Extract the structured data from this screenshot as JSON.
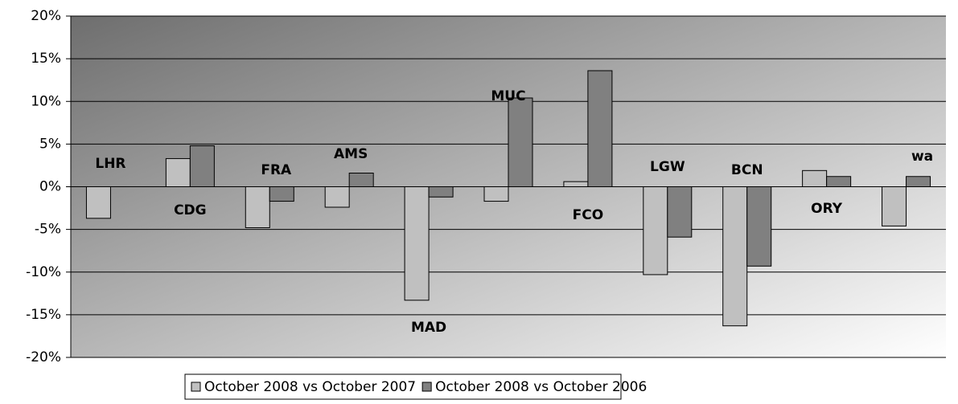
{
  "chart_data": {
    "type": "bar",
    "categories": [
      "LHR",
      "CDG",
      "FRA",
      "AMS",
      "MAD",
      "MUC",
      "FCO",
      "LGW",
      "BCN",
      "ORY",
      "wa"
    ],
    "series": [
      {
        "name": "October 2008 vs October 2007",
        "color": "#c0c0c0",
        "values": [
          -3.7,
          3.3,
          -4.8,
          -2.4,
          -13.3,
          -1.7,
          0.6,
          -10.3,
          -16.3,
          1.9,
          -4.6
        ]
      },
      {
        "name": "October 2008 vs October 2006",
        "color": "#808080",
        "values": [
          null,
          4.8,
          -1.7,
          1.6,
          -1.2,
          10.4,
          13.6,
          -5.9,
          -9.3,
          1.2,
          1.2
        ]
      }
    ],
    "ylim": [
      -20,
      20
    ],
    "yticks": [
      {
        "value": -20,
        "label": "-20%"
      },
      {
        "value": -15,
        "label": "-15%"
      },
      {
        "value": -10,
        "label": "-10%"
      },
      {
        "value": -5,
        "label": "-5%"
      },
      {
        "value": 0,
        "label": "0%"
      },
      {
        "value": 5,
        "label": "5%"
      },
      {
        "value": 10,
        "label": "10%"
      },
      {
        "value": 15,
        "label": "15%"
      },
      {
        "value": 20,
        "label": "20%"
      }
    ],
    "grid": true,
    "legend": "bottom"
  }
}
